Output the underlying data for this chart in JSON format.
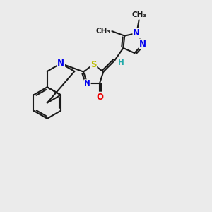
{
  "background_color": "#ebebeb",
  "bond_color": "#1a1a1a",
  "bond_width": 1.5,
  "atom_colors": {
    "N": "#0000ee",
    "S": "#bbbb00",
    "O": "#ee0000",
    "H": "#22aaaa",
    "C": "#1a1a1a"
  },
  "font_size_atom": 8.5,
  "font_size_methyl": 7.5,
  "figsize": [
    3.0,
    3.0
  ],
  "dpi": 100,
  "xlim": [
    0,
    10
  ],
  "ylim": [
    0,
    10
  ]
}
